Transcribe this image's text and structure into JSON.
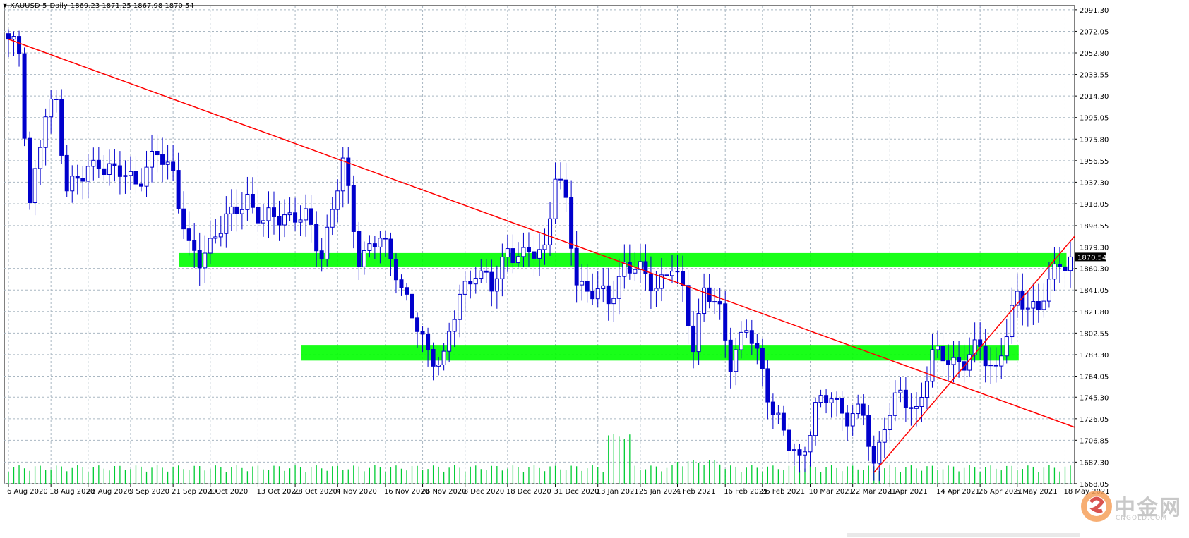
{
  "chart_data": {
    "type": "candlestick",
    "symbol": "XAUUSD-5",
    "timeframe": "Daily",
    "ohlc_header": "1869.23 1871.25 1867.98 1870.54",
    "current_price": "1870.54",
    "ylim": [
      1668.0,
      2095.0
    ],
    "y_ticks": [
      "2091.30",
      "2072.05",
      "2052.80",
      "2033.55",
      "2014.30",
      "1995.05",
      "1975.80",
      "1956.55",
      "1937.30",
      "1918.05",
      "1898.55",
      "1879.30",
      "1860.30",
      "1841.05",
      "1821.80",
      "1802.55",
      "1783.30",
      "1764.05",
      "1745.30",
      "1726.05",
      "1706.85",
      "1687.30",
      "1668.05"
    ],
    "x_ticks": [
      "6 Aug 2020",
      "18 Aug 2020",
      "28 Aug 2020",
      "9 Sep 2020",
      "21 Sep 2020",
      "1 Oct 2020",
      "13 Oct 2020",
      "23 Oct 2020",
      "4 Nov 2020",
      "16 Nov 2020",
      "26 Nov 2020",
      "8 Dec 2020",
      "18 Dec 2020",
      "31 Dec 2020",
      "13 Jan 2021",
      "25 Jan 2021",
      "4 Feb 2021",
      "16 Feb 2021",
      "26 Feb 2021",
      "10 Mar 2021",
      "22 Mar 2021",
      "1 Apr 2021",
      "14 Apr 2021",
      "26 Apr 2021",
      "6 May 2021",
      "18 May 2021"
    ],
    "x_tick_index": [
      0,
      8,
      15,
      23,
      31,
      38,
      47,
      54,
      62,
      71,
      78,
      86,
      94,
      103,
      111,
      119,
      126,
      135,
      142,
      151,
      159,
      166,
      175,
      183,
      190,
      199
    ],
    "bar_count": 201,
    "key_points": [
      {
        "i": 0,
        "price": 2060
      },
      {
        "i": 2,
        "price": 2055
      },
      {
        "i": 4,
        "price": 1920
      },
      {
        "i": 7,
        "price": 1995
      },
      {
        "i": 9,
        "price": 2010
      },
      {
        "i": 11,
        "price": 1935
      },
      {
        "i": 14,
        "price": 1940
      },
      {
        "i": 17,
        "price": 1958
      },
      {
        "i": 20,
        "price": 1945
      },
      {
        "i": 24,
        "price": 1940
      },
      {
        "i": 28,
        "price": 1960
      },
      {
        "i": 31,
        "price": 1948
      },
      {
        "i": 34,
        "price": 1875
      },
      {
        "i": 36,
        "price": 1865
      },
      {
        "i": 39,
        "price": 1895
      },
      {
        "i": 42,
        "price": 1905
      },
      {
        "i": 45,
        "price": 1925
      },
      {
        "i": 48,
        "price": 1900
      },
      {
        "i": 52,
        "price": 1910
      },
      {
        "i": 56,
        "price": 1903
      },
      {
        "i": 59,
        "price": 1875
      },
      {
        "i": 63,
        "price": 1952
      },
      {
        "i": 66,
        "price": 1872
      },
      {
        "i": 70,
        "price": 1885
      },
      {
        "i": 73,
        "price": 1862
      },
      {
        "i": 76,
        "price": 1815
      },
      {
        "i": 79,
        "price": 1785
      },
      {
        "i": 82,
        "price": 1780
      },
      {
        "i": 85,
        "price": 1835
      },
      {
        "i": 88,
        "price": 1862
      },
      {
        "i": 91,
        "price": 1840
      },
      {
        "i": 94,
        "price": 1880
      },
      {
        "i": 97,
        "price": 1868
      },
      {
        "i": 101,
        "price": 1880
      },
      {
        "i": 103,
        "price": 1945
      },
      {
        "i": 105,
        "price": 1915
      },
      {
        "i": 107,
        "price": 1850
      },
      {
        "i": 110,
        "price": 1840
      },
      {
        "i": 113,
        "price": 1830
      },
      {
        "i": 116,
        "price": 1865
      },
      {
        "i": 119,
        "price": 1855
      },
      {
        "i": 122,
        "price": 1847
      },
      {
        "i": 125,
        "price": 1860
      },
      {
        "i": 127,
        "price": 1838
      },
      {
        "i": 129,
        "price": 1795
      },
      {
        "i": 131,
        "price": 1840
      },
      {
        "i": 134,
        "price": 1820
      },
      {
        "i": 136,
        "price": 1780
      },
      {
        "i": 139,
        "price": 1805
      },
      {
        "i": 142,
        "price": 1770
      },
      {
        "i": 144,
        "price": 1735
      },
      {
        "i": 147,
        "price": 1700
      },
      {
        "i": 149,
        "price": 1690
      },
      {
        "i": 152,
        "price": 1735
      },
      {
        "i": 155,
        "price": 1745
      },
      {
        "i": 158,
        "price": 1730
      },
      {
        "i": 161,
        "price": 1727
      },
      {
        "i": 163,
        "price": 1685
      },
      {
        "i": 165,
        "price": 1725
      },
      {
        "i": 168,
        "price": 1745
      },
      {
        "i": 171,
        "price": 1735
      },
      {
        "i": 174,
        "price": 1780
      },
      {
        "i": 177,
        "price": 1782
      },
      {
        "i": 180,
        "price": 1775
      },
      {
        "i": 183,
        "price": 1790
      },
      {
        "i": 186,
        "price": 1770
      },
      {
        "i": 188,
        "price": 1800
      },
      {
        "i": 190,
        "price": 1835
      },
      {
        "i": 192,
        "price": 1832
      },
      {
        "i": 194,
        "price": 1822
      },
      {
        "i": 196,
        "price": 1845
      },
      {
        "i": 198,
        "price": 1868
      },
      {
        "i": 200,
        "price": 1870.54
      }
    ],
    "resistance_zones": [
      {
        "from_date": "21 Sep 2020",
        "to_date": "18 May 2021",
        "top": 1874,
        "bottom": 1862,
        "color": "#00ff00"
      },
      {
        "from_date": "23 Oct 2020",
        "to_date": "6 May 2021",
        "top": 1792,
        "bottom": 1778,
        "color": "#00ff00"
      }
    ],
    "trendlines": [
      {
        "name": "down",
        "from": {
          "date": "6 Aug 2020",
          "price": 2065
        },
        "through": {
          "date": "4 Nov 2020",
          "price": 1958
        },
        "color": "#ff0000"
      },
      {
        "name": "up",
        "from": {
          "date": "30 Mar 2021",
          "price": 1678
        },
        "through": {
          "date": "14 Apr 2021",
          "price": 1745
        },
        "color": "#ff0000"
      }
    ],
    "colors": {
      "bull": "#00ffff",
      "bear": "#0000ff",
      "volume": "#00cc33",
      "grid": "#a9b7c2",
      "zone": "#00ff00",
      "trend": "#ff0000",
      "price_tag": "#000000"
    },
    "grid": true
  },
  "watermark": {
    "text": "中金网",
    "sub": "CNGOLD.COM"
  }
}
